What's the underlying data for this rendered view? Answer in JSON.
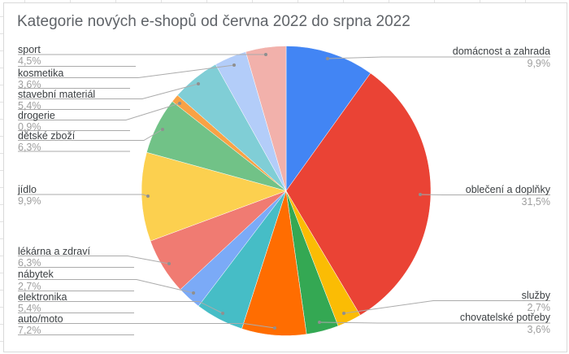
{
  "chart_data": {
    "type": "pie",
    "title": "Kategorie nových e-shopů od června 2022 do srpna 2022",
    "unit": "%",
    "decimal_style": "comma",
    "order": "clockwise-from-top",
    "labels_style": "outside-callouts-with-leader-lines",
    "legend_position": "none",
    "slices": [
      {
        "label": "domácnost a zahrada",
        "value": 9.9,
        "pct_label": "9,9%",
        "color": "#4285F4"
      },
      {
        "label": "oblečení a doplňky",
        "value": 31.5,
        "pct_label": "31,5%",
        "color": "#EA4335"
      },
      {
        "label": "služby",
        "value": 2.7,
        "pct_label": "2,7%",
        "color": "#FBBC04"
      },
      {
        "label": "chovatelské potřeby",
        "value": 3.6,
        "pct_label": "3,6%",
        "color": "#34A853"
      },
      {
        "label": "auto/moto",
        "value": 7.2,
        "pct_label": "7,2%",
        "color": "#FF6D01"
      },
      {
        "label": "elektronika",
        "value": 5.4,
        "pct_label": "5,4%",
        "color": "#46BDC6"
      },
      {
        "label": "nábytek",
        "value": 2.7,
        "pct_label": "2,7%",
        "color": "#7BAAF7"
      },
      {
        "label": "lékárna a zdraví",
        "value": 6.3,
        "pct_label": "6,3%",
        "color": "#F07B72"
      },
      {
        "label": "jídlo",
        "value": 9.9,
        "pct_label": "9,9%",
        "color": "#FCD04F"
      },
      {
        "label": "dětské zboží",
        "value": 6.3,
        "pct_label": "6,3%",
        "color": "#71C287"
      },
      {
        "label": "drogerie",
        "value": 0.9,
        "pct_label": "0,9%",
        "color": "#F9A245"
      },
      {
        "label": "stavební materiál",
        "value": 5.4,
        "pct_label": "5,4%",
        "color": "#80CED6"
      },
      {
        "label": "kosmetika",
        "value": 3.6,
        "pct_label": "3,6%",
        "color": "#B3CDF9"
      },
      {
        "label": "sport",
        "value": 4.5,
        "pct_label": "4,5%",
        "color": "#F2B1AB"
      }
    ],
    "colors_meta": {
      "title_color": "#5f6368",
      "label_color": "#3c4043",
      "pct_color": "#9e9e9e",
      "leader_line_color": "#ababab",
      "card_border_color": "#d9d9d9"
    }
  }
}
